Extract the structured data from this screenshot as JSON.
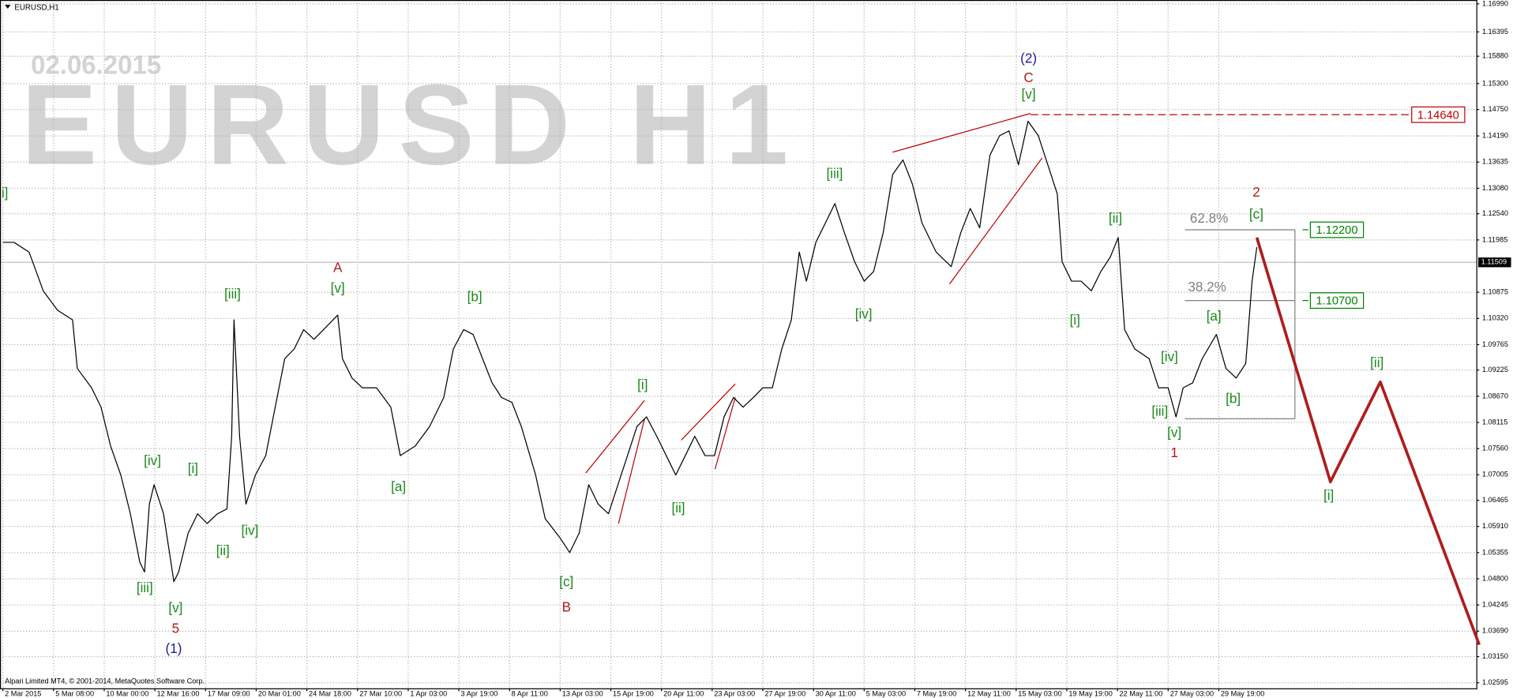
{
  "chart_data": {
    "type": "line",
    "title": "EURUSD,H1",
    "watermark": [
      "02.06.2015",
      "EURUSD H1"
    ],
    "footer": "Alpari Limited MT4, © 2001-2014, MetaQuotes Software Corp.",
    "grid": true,
    "xlim": [
      0,
      1865
    ],
    "ylim": [
      1.02478,
      1.17072
    ],
    "xticks": [
      {
        "value": 0,
        "label": "2 Mar 2015"
      },
      {
        "value": 64,
        "label": "5 Mar 08:00"
      },
      {
        "value": 128,
        "label": "10 Mar 00:00"
      },
      {
        "value": 192,
        "label": "12 Mar 16:00"
      },
      {
        "value": 256,
        "label": "17 Mar 09:00"
      },
      {
        "value": 320,
        "label": "20 Mar 01:00"
      },
      {
        "value": 384,
        "label": "24 Mar 18:00"
      },
      {
        "value": 448,
        "label": "27 Mar 10:00"
      },
      {
        "value": 512,
        "label": "1 Apr 03:00"
      },
      {
        "value": 576,
        "label": "3 Apr 19:00"
      },
      {
        "value": 640,
        "label": "8 Apr 11:00"
      },
      {
        "value": 704,
        "label": "13 Apr 03:00"
      },
      {
        "value": 768,
        "label": "15 Apr 19:00"
      },
      {
        "value": 832,
        "label": "20 Apr 11:00"
      },
      {
        "value": 896,
        "label": "23 Apr 03:00"
      },
      {
        "value": 960,
        "label": "27 Apr 19:00"
      },
      {
        "value": 1024,
        "label": "30 Apr 11:00"
      },
      {
        "value": 1088,
        "label": "5 May 03:00"
      },
      {
        "value": 1152,
        "label": "7 May 19:00"
      },
      {
        "value": 1216,
        "label": "12 May 11:00"
      },
      {
        "value": 1280,
        "label": "15 May 03:00"
      },
      {
        "value": 1344,
        "label": "19 May 19:00"
      },
      {
        "value": 1408,
        "label": "22 May 11:00"
      },
      {
        "value": 1472,
        "label": "27 May 03:00"
      },
      {
        "value": 1536,
        "label": "29 May 19:00"
      }
    ],
    "yticks": [
      {
        "value": 1.1699,
        "label": "1.16990"
      },
      {
        "value": 1.16395,
        "label": "1.16395"
      },
      {
        "value": 1.1588,
        "label": "1.15880"
      },
      {
        "value": 1.153,
        "label": "1.15300"
      },
      {
        "value": 1.1475,
        "label": "1.14750"
      },
      {
        "value": 1.1419,
        "label": "1.14190"
      },
      {
        "value": 1.13635,
        "label": "1.13635"
      },
      {
        "value": 1.1308,
        "label": "1.13080"
      },
      {
        "value": 1.1254,
        "label": "1.12540"
      },
      {
        "value": 1.11985,
        "label": "1.11985"
      },
      {
        "value": 1.10875,
        "label": "1.10875"
      },
      {
        "value": 1.1032,
        "label": "1.10320"
      },
      {
        "value": 1.09765,
        "label": "1.09765"
      },
      {
        "value": 1.09225,
        "label": "1.09225"
      },
      {
        "value": 1.0867,
        "label": "1.08670"
      },
      {
        "value": 1.08115,
        "label": "1.08115"
      },
      {
        "value": 1.0756,
        "label": "1.07560"
      },
      {
        "value": 1.07005,
        "label": "1.07005"
      },
      {
        "value": 1.06465,
        "label": "1.06465"
      },
      {
        "value": 1.0591,
        "label": "1.05910"
      },
      {
        "value": 1.05355,
        "label": "1.05355"
      },
      {
        "value": 1.048,
        "label": "1.04800"
      },
      {
        "value": 1.04245,
        "label": "1.04245"
      },
      {
        "value": 1.0369,
        "label": "1.03690"
      },
      {
        "value": 1.0315,
        "label": "1.03150"
      },
      {
        "value": 1.02595,
        "label": "1.02595"
      }
    ],
    "current_price": 1.11509,
    "levels": [
      {
        "value": 1.1464,
        "label": "1.14640",
        "color": "#c00000"
      },
      {
        "value": 1.122,
        "label": "1.12200",
        "color": "#008000"
      },
      {
        "value": 1.107,
        "label": "1.10700",
        "color": "#008000"
      }
    ],
    "series": [
      {
        "color": "#000000",
        "x": [
          0,
          14,
          33,
          51,
          69,
          88,
          94,
          112,
          124,
          136,
          149,
          161,
          173,
          179,
          185,
          191,
          203,
          216,
          222,
          234,
          246,
          258,
          271,
          283,
          289,
          292,
          299,
          307,
          319,
          332,
          344,
          356,
          368,
          380,
          393,
          405,
          423,
          429,
          441,
          454,
          472,
          490,
          502,
          521,
          539,
          557,
          569,
          582,
          594,
          606,
          618,
          630,
          643,
          655,
          673,
          685,
          704,
          716,
          728,
          740,
          752,
          765,
          777,
          789,
          801,
          813,
          826,
          838,
          850,
          862,
          874,
          887,
          899,
          911,
          923,
          935,
          948,
          960,
          972,
          984,
          996,
          1006,
          1015,
          1027,
          1039,
          1051,
          1063,
          1076,
          1088,
          1100,
          1112,
          1124,
          1137,
          1149,
          1161,
          1179,
          1198,
          1210,
          1222,
          1234,
          1247,
          1259,
          1271,
          1283,
          1295,
          1308,
          1320,
          1332,
          1338,
          1350,
          1362,
          1375,
          1387,
          1399,
          1409,
          1417,
          1430,
          1448,
          1460,
          1472,
          1482,
          1491,
          1503,
          1515,
          1533,
          1545,
          1558,
          1570,
          1578,
          1584
        ],
        "values": [
          1.11933,
          1.11933,
          1.11728,
          1.10905,
          1.10494,
          1.10289,
          1.09261,
          1.0885,
          1.08439,
          1.07616,
          1.07,
          1.06178,
          1.0515,
          1.04944,
          1.06383,
          1.06794,
          1.06178,
          1.04739,
          1.04944,
          1.05766,
          1.06178,
          1.05972,
          1.06178,
          1.0628,
          1.07822,
          1.10289,
          1.07822,
          1.06383,
          1.07,
          1.07411,
          1.08439,
          1.09466,
          1.09672,
          1.10083,
          1.09878,
          1.10083,
          1.10392,
          1.09466,
          1.09055,
          1.0885,
          1.0885,
          1.08439,
          1.07411,
          1.07616,
          1.08028,
          1.08644,
          1.09672,
          1.10083,
          1.0998,
          1.09466,
          1.08953,
          1.08644,
          1.08541,
          1.08028,
          1.07,
          1.06075,
          1.05664,
          1.05355,
          1.05766,
          1.06794,
          1.06383,
          1.06178,
          1.06794,
          1.07411,
          1.08028,
          1.08233,
          1.07822,
          1.07411,
          1.07,
          1.07411,
          1.07822,
          1.07411,
          1.07411,
          1.08233,
          1.08644,
          1.08439,
          1.08644,
          1.0885,
          1.0885,
          1.09672,
          1.10289,
          1.11728,
          1.11111,
          1.11933,
          1.12344,
          1.12755,
          1.12139,
          1.11522,
          1.11111,
          1.11317,
          1.12139,
          1.13372,
          1.1368,
          1.13167,
          1.12344,
          1.11728,
          1.11419,
          1.12139,
          1.12653,
          1.12242,
          1.13783,
          1.14194,
          1.14297,
          1.13578,
          1.14503,
          1.14194,
          1.13578,
          1.12961,
          1.11522,
          1.11111,
          1.11111,
          1.10905,
          1.11317,
          1.11625,
          1.12036,
          1.10083,
          1.09672,
          1.09466,
          1.0885,
          1.0885,
          1.08233,
          1.0885,
          1.08953,
          1.09466,
          1.0998,
          1.09261,
          1.09055,
          1.09364,
          1.11111,
          1.1183
        ]
      },
      {
        "color": "#b01c1c",
        "x": [
          1584,
          1677,
          1740,
          1865
        ],
        "values": [
          1.12036,
          1.06856,
          1.08973,
          1.03402
        ]
      }
    ],
    "annotations": [
      "i]",
      "[iv]",
      "[i]",
      "[iii]",
      "[ii]",
      "[v]",
      "5",
      "(1)",
      "[iv]",
      "[iii]",
      "A",
      "[v]",
      "[a]",
      "[b]",
      "[c]",
      "B",
      "[i]",
      "[ii]",
      "[iii]",
      "[iv]",
      "(2)",
      "C",
      "[v]",
      "[ii]",
      "[i]",
      "[iv]",
      "[a]",
      "[iii]",
      "[b]",
      "[v]",
      "1",
      "2",
      "[c]",
      "[ii]",
      "[i]",
      "62.8%",
      "38.2%"
    ]
  }
}
